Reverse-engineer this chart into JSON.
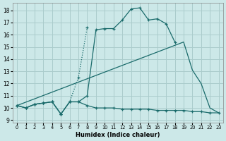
{
  "xlabel": "Humidex (Indice chaleur)",
  "background_color": "#cce8e8",
  "grid_color": "#aacccc",
  "line_color": "#1a6b6b",
  "xlim": [
    -0.5,
    23.5
  ],
  "ylim": [
    8.8,
    18.6
  ],
  "yticks": [
    9,
    10,
    11,
    12,
    13,
    14,
    15,
    16,
    17,
    18
  ],
  "xticks": [
    0,
    1,
    2,
    3,
    4,
    5,
    6,
    7,
    8,
    9,
    10,
    11,
    12,
    13,
    14,
    15,
    16,
    17,
    18,
    19,
    20,
    21,
    22,
    23
  ],
  "line1_x": [
    0,
    1,
    2,
    3,
    4,
    5,
    6,
    7,
    8,
    9,
    10,
    11,
    12,
    13,
    14,
    15,
    16,
    17,
    18
  ],
  "line1_y": [
    10.2,
    10.0,
    10.3,
    10.4,
    10.5,
    9.5,
    10.5,
    10.5,
    11.0,
    16.4,
    16.5,
    16.5,
    17.2,
    18.1,
    18.2,
    17.2,
    17.3,
    16.9,
    15.4
  ],
  "line2_x": [
    0,
    1,
    2,
    3,
    4,
    5,
    6,
    7,
    8
  ],
  "line2_y": [
    10.2,
    10.0,
    10.3,
    10.4,
    10.5,
    9.5,
    10.5,
    12.5,
    16.6
  ],
  "line3_x": [
    0,
    19,
    20,
    21,
    22,
    23
  ],
  "line3_y": [
    10.2,
    15.4,
    13.1,
    12.0,
    10.0,
    9.6
  ],
  "line4_x": [
    0,
    1,
    2,
    3,
    4,
    5,
    6,
    7,
    8,
    9,
    10,
    11,
    12,
    13,
    14,
    15,
    16,
    17,
    18,
    19,
    20,
    21,
    22,
    23
  ],
  "line4_y": [
    10.2,
    10.0,
    10.3,
    10.4,
    10.5,
    9.5,
    10.5,
    10.5,
    10.2,
    10.0,
    10.0,
    10.0,
    9.9,
    9.9,
    9.9,
    9.9,
    9.8,
    9.8,
    9.8,
    9.8,
    9.7,
    9.7,
    9.6,
    9.6
  ]
}
